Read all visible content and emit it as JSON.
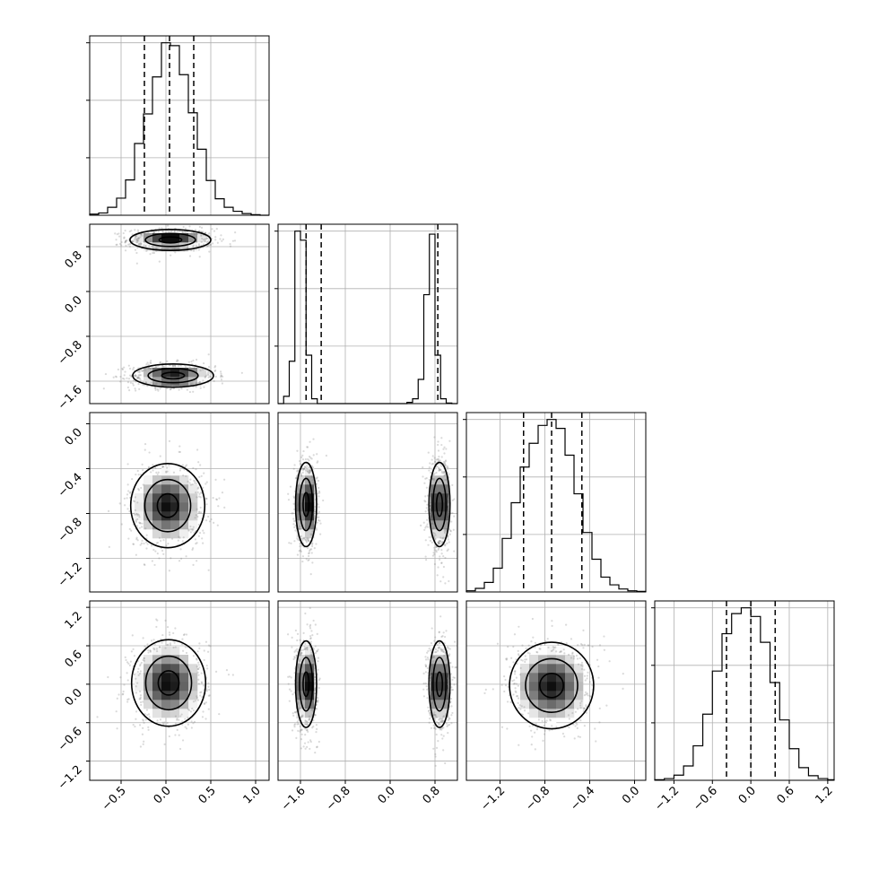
{
  "chart_data": {
    "type": "corner",
    "grid": true,
    "parameters": [
      {
        "id": "p0",
        "range": [
          -0.85,
          1.15
        ],
        "ticks": [
          -0.5,
          0.0,
          0.5,
          1.0
        ],
        "tick_labels": [
          "−0.5",
          "0.0",
          "0.5",
          "1.0"
        ],
        "quantiles": [
          -0.24,
          0.04,
          0.31
        ],
        "histogram": {
          "bins": [
            -0.85,
            -0.75,
            -0.65,
            -0.55,
            -0.45,
            -0.35,
            -0.25,
            -0.15,
            -0.05,
            0.05,
            0.15,
            0.25,
            0.35,
            0.45,
            0.55,
            0.65,
            0.75,
            0.85,
            0.95,
            1.05,
            1.15
          ],
          "counts": [
            2,
            4,
            14,
            30,
            62,
            126,
            178,
            243,
            303,
            298,
            247,
            180,
            116,
            61,
            29,
            14,
            7,
            3,
            1,
            0
          ]
        }
      },
      {
        "id": "p1",
        "range": [
          -2.0,
          1.2
        ],
        "ticks": [
          -1.6,
          -0.8,
          0.0,
          0.8
        ],
        "tick_labels": [
          "−1.6",
          "−0.8",
          "0.0",
          "0.8"
        ],
        "quantiles": [
          -1.5,
          -1.23,
          0.85
        ],
        "histogram": {
          "bins": [
            -2.0,
            -1.9,
            -1.8,
            -1.7,
            -1.6,
            -1.5,
            -1.4,
            -1.3,
            -1.2,
            -1.1,
            -1.0,
            -0.9,
            -0.8,
            -0.7,
            -0.6,
            -0.5,
            -0.4,
            -0.3,
            -0.2,
            -0.1,
            0.0,
            0.1,
            0.2,
            0.3,
            0.4,
            0.5,
            0.6,
            0.7,
            0.8,
            0.9,
            1.0,
            1.1,
            1.2
          ],
          "counts": [
            0,
            12,
            70,
            285,
            270,
            80,
            8,
            0,
            0,
            0,
            0,
            0,
            0,
            0,
            0,
            0,
            0,
            0,
            0,
            0,
            0,
            0,
            0,
            2,
            8,
            40,
            180,
            280,
            80,
            8,
            1,
            0
          ]
        }
      },
      {
        "id": "p2",
        "range": [
          -1.5,
          0.1
        ],
        "ticks": [
          -1.2,
          -0.8,
          -0.4,
          0.0
        ],
        "tick_labels": [
          "−1.2",
          "−0.8",
          "−0.4",
          "0.0"
        ],
        "quantiles": [
          -0.99,
          -0.74,
          -0.47
        ],
        "histogram": {
          "bins": [
            -1.5,
            -1.42,
            -1.34,
            -1.26,
            -1.18,
            -1.1,
            -1.02,
            -0.94,
            -0.86,
            -0.78,
            -0.7,
            -0.62,
            -0.54,
            -0.46,
            -0.38,
            -0.3,
            -0.22,
            -0.14,
            -0.06,
            0.02,
            0.1
          ],
          "counts": [
            2,
            6,
            16,
            40,
            90,
            150,
            210,
            250,
            280,
            290,
            275,
            230,
            165,
            100,
            55,
            25,
            12,
            5,
            2,
            1
          ]
        }
      },
      {
        "id": "p3",
        "range": [
          -1.5,
          1.3
        ],
        "ticks": [
          -1.2,
          -0.6,
          0.0,
          0.6,
          1.2
        ],
        "tick_labels": [
          "−1.2",
          "−0.6",
          "0.0",
          "0.6",
          "1.2"
        ],
        "quantiles": [
          -0.38,
          0.0,
          0.38
        ],
        "histogram": {
          "bins": [
            -1.5,
            -1.35,
            -1.2,
            -1.05,
            -0.9,
            -0.75,
            -0.6,
            -0.45,
            -0.3,
            -0.15,
            0.0,
            0.15,
            0.3,
            0.45,
            0.6,
            0.75,
            0.9,
            1.05,
            1.2,
            1.3
          ],
          "counts": [
            1,
            3,
            9,
            25,
            60,
            115,
            190,
            255,
            290,
            300,
            285,
            240,
            170,
            105,
            55,
            22,
            8,
            3,
            1
          ]
        }
      }
    ],
    "contour_levels": [
      0.39,
      0.86,
      1.39
    ],
    "blobs": [
      {
        "x": "p0",
        "y": "p1",
        "mx": 0.05,
        "my": 0.92,
        "sx": 0.24,
        "sy": 0.1,
        "w": 1
      },
      {
        "x": "p0",
        "y": "p1",
        "mx": 0.08,
        "my": -1.5,
        "sx": 0.24,
        "sy": 0.11,
        "w": 1
      },
      {
        "x": "p0",
        "y": "p2",
        "mx": 0.02,
        "my": -0.73,
        "sx": 0.22,
        "sy": 0.2,
        "w": 1
      },
      {
        "x": "p1",
        "y": "p2",
        "mx": -1.5,
        "my": -0.72,
        "sx": 0.1,
        "sy": 0.2,
        "w": 1
      },
      {
        "x": "p1",
        "y": "p2",
        "mx": 0.88,
        "my": -0.72,
        "sx": 0.1,
        "sy": 0.2,
        "w": 1
      },
      {
        "x": "p0",
        "y": "p3",
        "mx": 0.03,
        "my": 0.02,
        "sx": 0.22,
        "sy": 0.36,
        "w": 1
      },
      {
        "x": "p1",
        "y": "p3",
        "mx": -1.5,
        "my": 0.0,
        "sx": 0.1,
        "sy": 0.36,
        "w": 1
      },
      {
        "x": "p1",
        "y": "p3",
        "mx": 0.88,
        "my": 0.0,
        "sx": 0.1,
        "sy": 0.36,
        "w": 1
      },
      {
        "x": "p2",
        "y": "p3",
        "mx": -0.74,
        "my": -0.02,
        "sx": 0.2,
        "sy": 0.36,
        "w": 1
      }
    ]
  }
}
